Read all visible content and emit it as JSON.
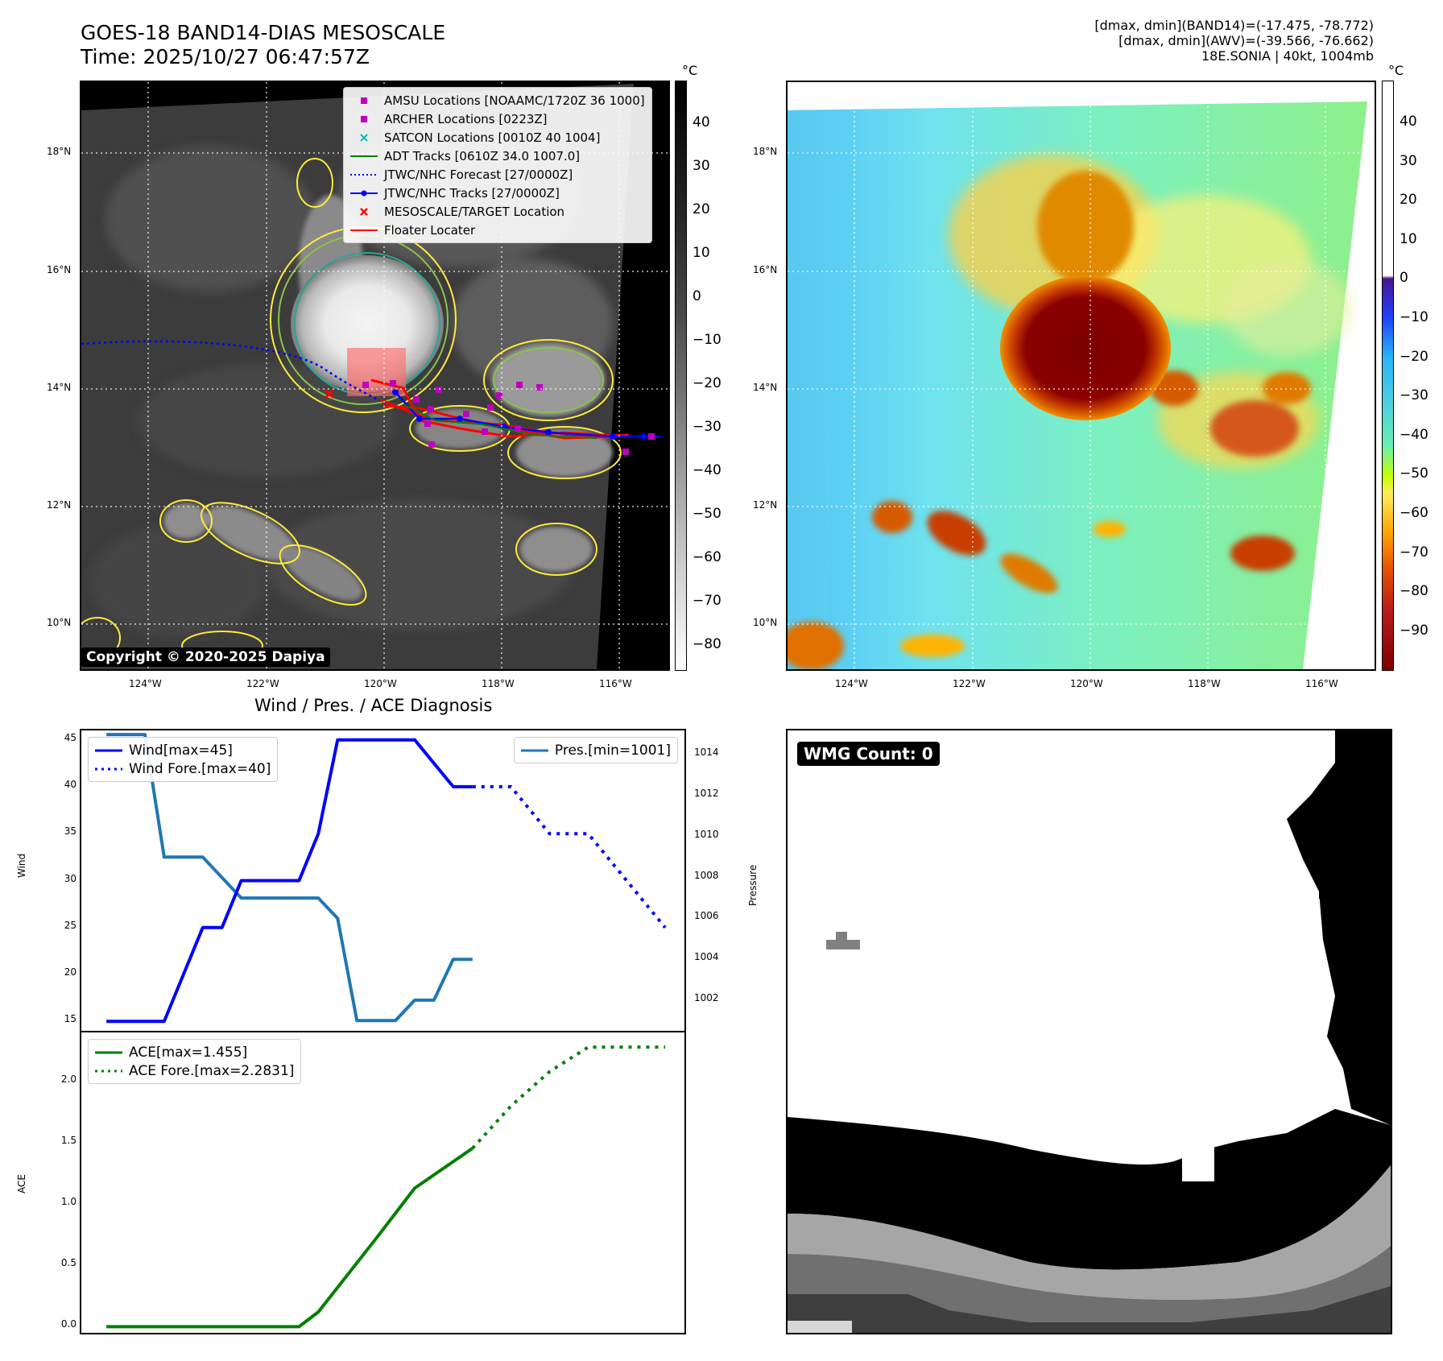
{
  "header": {
    "title_line1": "GOES-18 BAND14-DIAS MESOSCALE",
    "title_line2": "Time: 2025/10/27 06:47:57Z",
    "info_line1": "[dmax, dmin](BAND14)=(-17.475, -78.772)",
    "info_line2": "[dmax, dmin](AWV)=(-39.566, -76.662)",
    "info_line3": "18E.SONIA | 40kt, 1004mb"
  },
  "map": {
    "lat_labels": [
      "18°N",
      "16°N",
      "14°N",
      "12°N",
      "10°N"
    ],
    "lon_labels": [
      "124°W",
      "122°W",
      "120°W",
      "118°W",
      "116°W"
    ],
    "copyright": "Copyright © 2020-2025 Dapiya",
    "legend": [
      {
        "label": "AMSU Locations [NOAAMC/1720Z 36 1000]",
        "icon": "square-marker",
        "color": "#bf00bf"
      },
      {
        "label": "ARCHER Locations [0223Z]",
        "icon": "square-marker",
        "color": "#bf00bf"
      },
      {
        "label": "SATCON Locations [0010Z 40 1004]",
        "icon": "x-marker",
        "color": "#00bfbf"
      },
      {
        "label": "ADT Tracks [0610Z 34.0 1007.0]",
        "icon": "solid-line",
        "color": "#008000"
      },
      {
        "label": "JTWC/NHC Forecast [27/0000Z]",
        "icon": "dotted-line",
        "color": "#0000ff"
      },
      {
        "label": "JTWC/NHC Tracks [27/0000Z]",
        "icon": "line-dot",
        "color": "#0000ff"
      },
      {
        "label": "MESOSCALE/TARGET Location",
        "icon": "x-marker",
        "color": "#ff0000"
      },
      {
        "label": "Floater Locater",
        "icon": "solid-line",
        "color": "#ff0000"
      }
    ]
  },
  "colorbar1": {
    "unit": "°C",
    "ticks": [
      "40",
      "30",
      "20",
      "10",
      "0",
      "−10",
      "−20",
      "−30",
      "−40",
      "−50",
      "−60",
      "−70",
      "−80"
    ]
  },
  "colorbar2": {
    "unit": "°C",
    "ticks": [
      "40",
      "30",
      "20",
      "10",
      "0",
      "−10",
      "−20",
      "−30",
      "−40",
      "−50",
      "−60",
      "−70",
      "−80",
      "−90"
    ]
  },
  "diagnosis": {
    "title": "Wind / Pres. / ACE Diagnosis",
    "wind_ylabel": "Wind",
    "pres_ylabel": "Pressure",
    "ace_ylabel": "ACE",
    "wind_ticks": [
      "45",
      "40",
      "35",
      "30",
      "25",
      "20",
      "15"
    ],
    "pres_ticks": [
      "1014",
      "1012",
      "1010",
      "1008",
      "1006",
      "1004",
      "1002"
    ],
    "ace_ticks": [
      "2.0",
      "1.5",
      "1.0",
      "0.5",
      "0.0"
    ],
    "legend_wind": "Wind[max=45]",
    "legend_wind_fore": "Wind Fore.[max=40]",
    "legend_pres": "Pres.[min=1001]",
    "legend_ace": "ACE[max=1.455]",
    "legend_ace_fore": "ACE Fore.[max=2.2831]"
  },
  "wmg": {
    "label": "WMG Count: 0"
  },
  "chart_data": [
    {
      "type": "line",
      "title": "Wind / Pres. / ACE Diagnosis",
      "ylabel": "Wind",
      "ylim": [
        14,
        46
      ],
      "x": [
        0,
        1,
        2,
        3,
        4,
        5,
        6,
        7,
        8,
        9,
        10,
        11,
        12,
        13,
        14,
        15,
        16,
        17,
        18,
        19,
        20,
        21,
        22,
        23,
        24,
        25,
        26,
        27,
        28,
        29
      ],
      "series": [
        {
          "name": "Wind[max=45]",
          "x": [
            0,
            3,
            5,
            6,
            7,
            10,
            11,
            12,
            16,
            18,
            19
          ],
          "values": [
            15,
            15,
            25,
            25,
            30,
            30,
            35,
            45,
            45,
            40,
            40
          ],
          "color": "#0000ff",
          "style": "solid"
        },
        {
          "name": "Wind Fore.[max=40]",
          "x": [
            19,
            21,
            23,
            25,
            29
          ],
          "values": [
            40,
            40,
            35,
            35,
            25
          ],
          "color": "#0000ff",
          "style": "dotted"
        },
        {
          "name": "Pres.[min=1001]",
          "x": [
            0,
            2,
            3,
            5,
            7,
            8,
            11,
            12,
            13,
            15,
            16,
            17,
            18,
            19
          ],
          "values": [
            1015,
            1015,
            1009,
            1009,
            1007,
            1007,
            1007,
            1006,
            1001,
            1001,
            1002,
            1002,
            1004,
            1004
          ],
          "color": "#1f77b4",
          "style": "solid",
          "axis": "right",
          "ylim": [
            1000.5,
            1015.2
          ]
        }
      ]
    },
    {
      "type": "line",
      "ylabel": "ACE",
      "ylim": [
        -0.05,
        2.4
      ],
      "series": [
        {
          "name": "ACE[max=1.455]",
          "x": [
            0,
            5,
            10,
            11,
            14,
            16,
            19
          ],
          "values": [
            0,
            0,
            0,
            0.12,
            0.72,
            1.13,
            1.455
          ],
          "color": "#008000",
          "style": "solid"
        },
        {
          "name": "ACE Fore.[max=2.2831]",
          "x": [
            19,
            21,
            23,
            25,
            29
          ],
          "values": [
            1.455,
            1.8,
            2.08,
            2.28,
            2.28
          ],
          "color": "#008000",
          "style": "dotted"
        }
      ]
    }
  ]
}
